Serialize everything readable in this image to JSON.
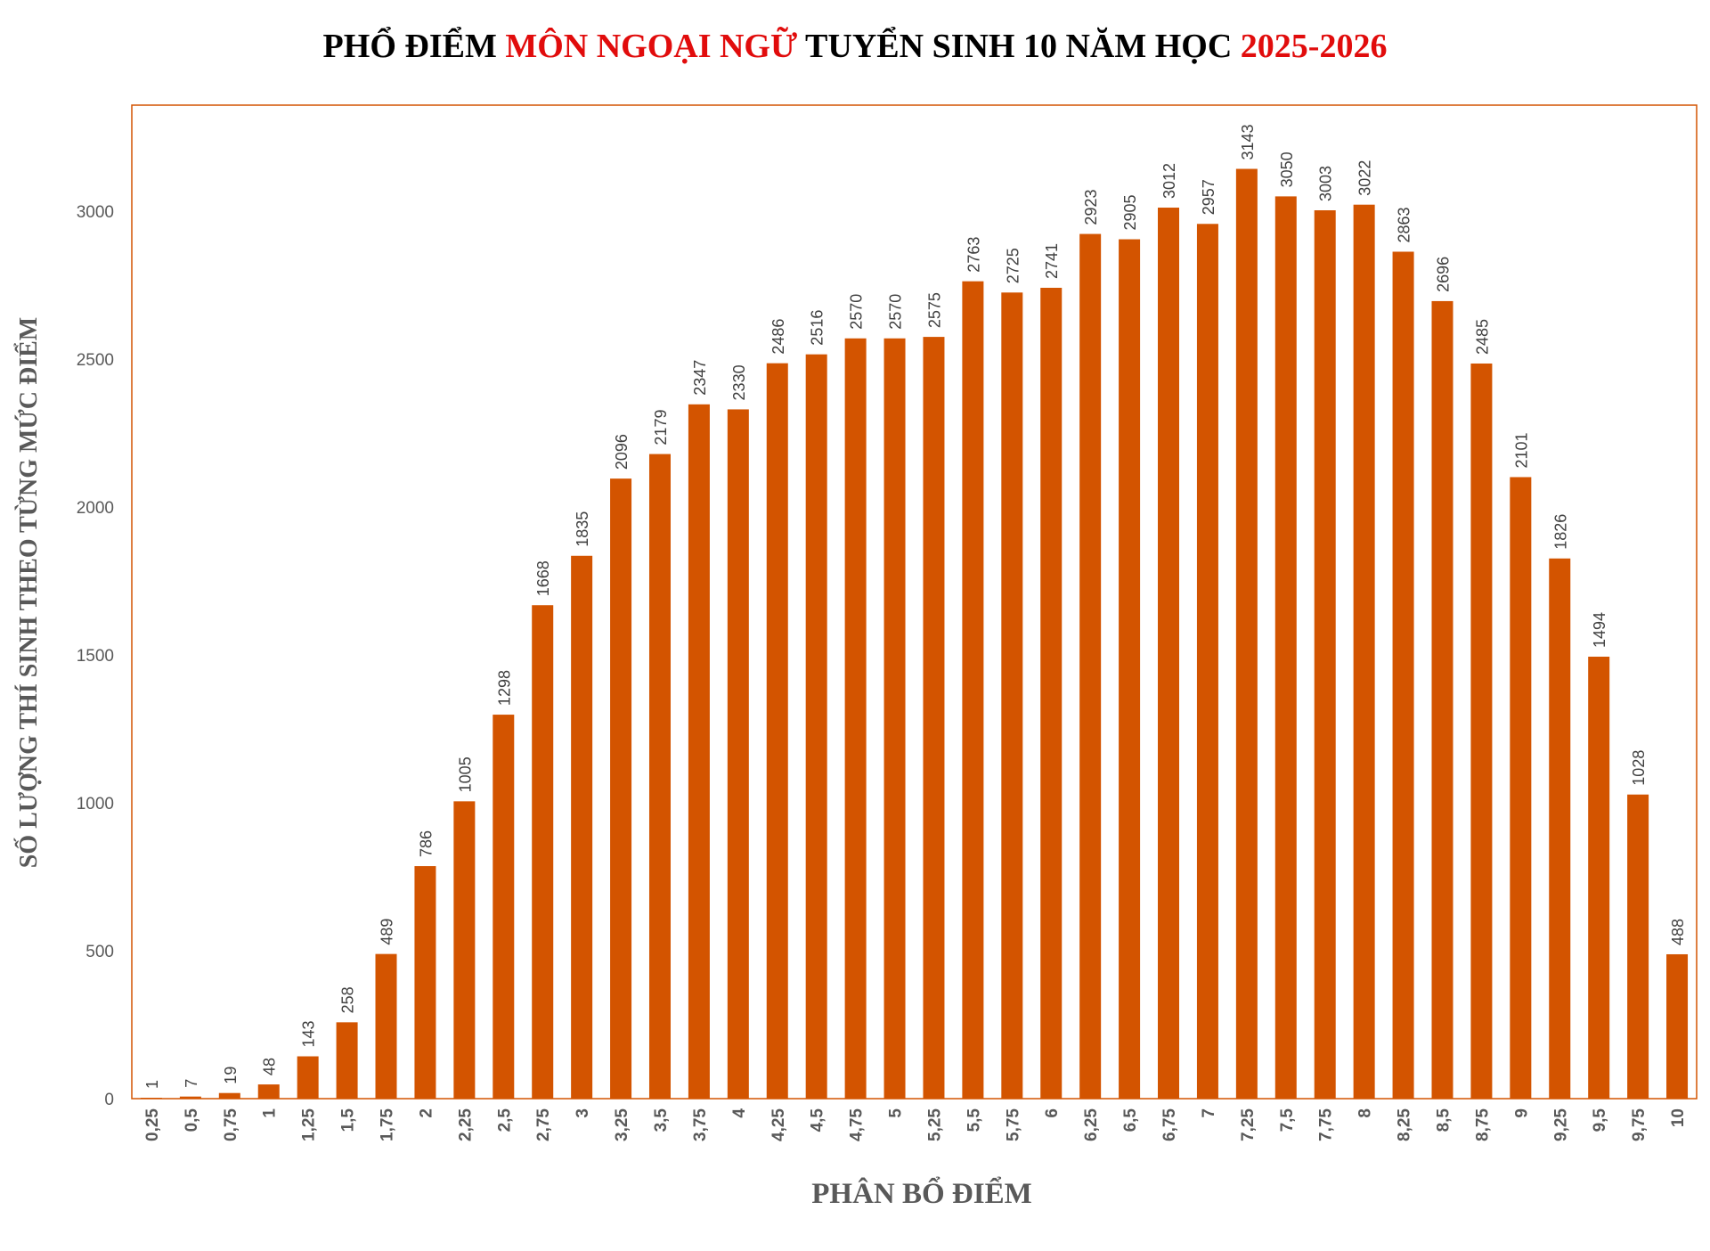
{
  "title": {
    "part1": "PHỔ ĐIỂM ",
    "part2": "MÔN NGOẠI NGỮ",
    "part3": " TUYỂN SINH 10 NĂM HỌC ",
    "part4": "2025-2026"
  },
  "colors": {
    "bar": "#d35400",
    "frame": "#d35400",
    "title_accent": "#e10c0c"
  },
  "chart_data": {
    "type": "bar",
    "title": "PHỔ ĐIỂM MÔN NGOẠI NGỮ TUYỂN SINH 10 NĂM HỌC 2025-2026",
    "xlabel": "PHÂN BỔ ĐIỂM",
    "ylabel": "SỐ LƯỢNG THÍ SINH THEO TỪNG MỨC ĐIỂM",
    "ylim": [
      0,
      3350
    ],
    "yticks": [
      0,
      500,
      1000,
      1500,
      2000,
      2500,
      3000
    ],
    "grid": false,
    "data_labels": true,
    "categories": [
      "0,25",
      "0,5",
      "0,75",
      "1",
      "1,25",
      "1,5",
      "1,75",
      "2",
      "2,25",
      "2,5",
      "2,75",
      "3",
      "3,25",
      "3,5",
      "3,75",
      "4",
      "4,25",
      "4,5",
      "4,75",
      "5",
      "5,25",
      "5,5",
      "5,75",
      "6",
      "6,25",
      "6,5",
      "6,75",
      "7",
      "7,25",
      "7,5",
      "7,75",
      "8",
      "8,25",
      "8,5",
      "8,75",
      "9",
      "9,25",
      "9,5",
      "9,75",
      "10"
    ],
    "values": [
      1,
      7,
      19,
      48,
      143,
      258,
      489,
      786,
      1005,
      1298,
      1668,
      1835,
      2096,
      2179,
      2347,
      2330,
      2486,
      2516,
      2570,
      2570,
      2575,
      2763,
      2725,
      2741,
      2923,
      2905,
      3012,
      2957,
      3143,
      3050,
      3003,
      3022,
      2863,
      2696,
      2485,
      2101,
      1826,
      1494,
      1028,
      488
    ]
  }
}
